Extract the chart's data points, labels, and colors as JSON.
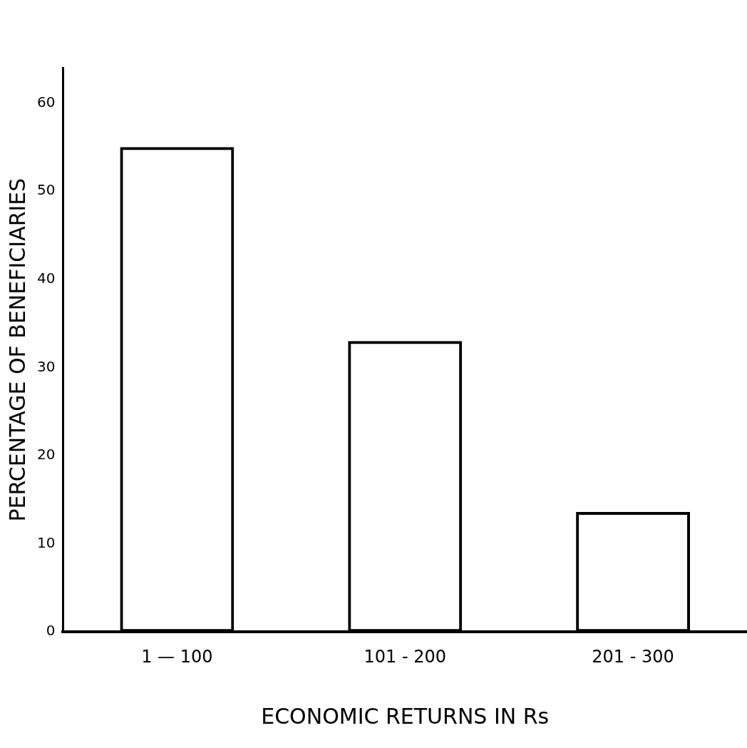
{
  "chart_data": {
    "type": "bar",
    "xlabel": "ECONOMIC RETURNS IN Rs",
    "ylabel": "PERCENTAGE OF BENEFICIARIES",
    "categories": [
      "1 — 100",
      "101 - 200",
      "201 - 300"
    ],
    "values": [
      55,
      33,
      13.6
    ],
    "color": "#000000",
    "ylim": [
      0,
      64
    ],
    "yticks": [
      0,
      10,
      20,
      30,
      40,
      50,
      60
    ],
    "grid": false,
    "legend": false
  }
}
